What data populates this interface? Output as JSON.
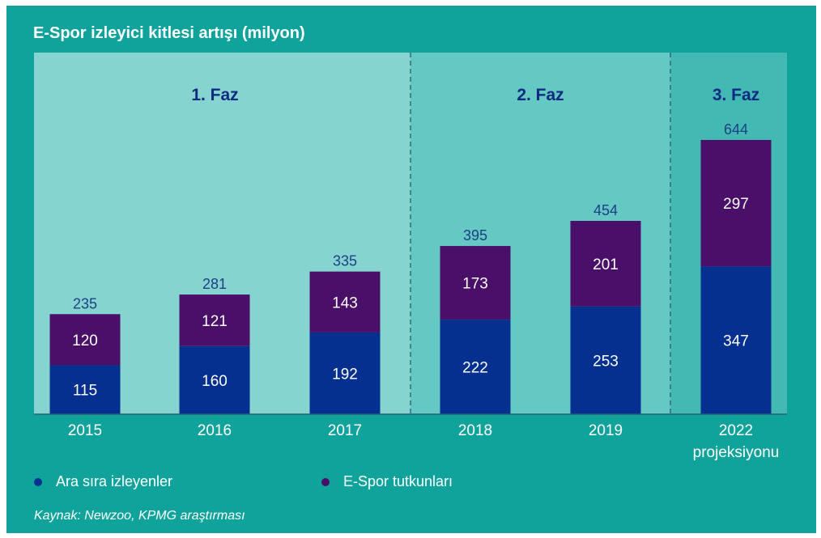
{
  "chart_data": {
    "type": "bar",
    "stacked": true,
    "title": "E-Spor izleyici kitlesi artışı (milyon)",
    "categories": [
      [
        "2015"
      ],
      [
        "2016"
      ],
      [
        "2017"
      ],
      [
        "2018"
      ],
      [
        "2019"
      ],
      [
        "2022",
        "projeksiyonu"
      ]
    ],
    "series": [
      {
        "name": "Ara sıra izleyenler",
        "color": "#05308f",
        "values": [
          115,
          160,
          192,
          222,
          253,
          347
        ]
      },
      {
        "name": "E-Spor tutkunları",
        "color": "#4a0f69",
        "values": [
          120,
          121,
          143,
          173,
          201,
          297
        ]
      }
    ],
    "totals": [
      235,
      281,
      335,
      395,
      454,
      644
    ],
    "phases": [
      {
        "label": "1. Faz",
        "color": "#85d4d0",
        "categories": [
          0,
          1,
          2
        ]
      },
      {
        "label": "2. Faz",
        "color": "#64c8c3",
        "categories": [
          3,
          4
        ]
      },
      {
        "label": "3. Faz",
        "color": "#43b9b3",
        "categories": [
          5
        ]
      }
    ],
    "ylim": [
      0,
      644
    ],
    "xlabel": "",
    "ylabel": "",
    "legend_position": "bottom-left",
    "grid": false
  },
  "source": "Kaynak: Newzoo, KPMG araştırması",
  "colors": {
    "card_background": "#10a39c",
    "phase_label": "#0f2a80",
    "total_label": "#1d3f86",
    "divider": "#2d5d74"
  }
}
